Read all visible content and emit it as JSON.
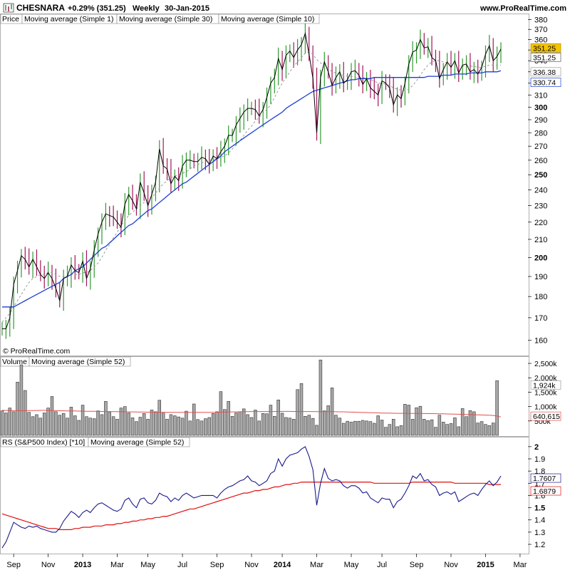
{
  "header": {
    "symbol": "CHESNARA",
    "change": "+0.29% (351.25)",
    "period": "Weekly",
    "date": "30-Jan-2015",
    "site": "www.ProRealTime.com"
  },
  "copyright": "© ProRealTime.com",
  "colors": {
    "up_bar": "#2e9a2e",
    "down_bar": "#a4145a",
    "price_line": "#000000",
    "sma1": "#0b1a8c",
    "sma30": "#1b3fd6",
    "sma10": "#9a9a9a",
    "volume_bar": "#a8a8a8",
    "volume_ma": "#e05050",
    "rs_line": "#1a1a8c",
    "rs_ma": "#e01010",
    "badge_yellow": "#f5c400"
  },
  "chart_data": [
    {
      "type": "candlestick-line",
      "panel": "price",
      "legend": [
        "Price",
        "Moving average (Simple 1)",
        "Moving average (Simple 30)",
        "Moving average (Simple 10)"
      ],
      "y_ticks": [
        160,
        170,
        180,
        190,
        200,
        210,
        220,
        230,
        240,
        250,
        260,
        270,
        280,
        290,
        300,
        310,
        320,
        330,
        340,
        350,
        360,
        370,
        380
      ],
      "y_bold_ticks": [
        200,
        250,
        300,
        350
      ],
      "ylim": [
        158,
        381
      ],
      "scale": "log",
      "x_labels": [
        {
          "label": "Sep",
          "week": 3,
          "bold": false
        },
        {
          "label": "Nov",
          "week": 12,
          "bold": false
        },
        {
          "label": "2013",
          "week": 21,
          "bold": true
        },
        {
          "label": "Mar",
          "week": 30,
          "bold": false
        },
        {
          "label": "May",
          "week": 38,
          "bold": false
        },
        {
          "label": "Jul",
          "week": 47,
          "bold": false
        },
        {
          "label": "Sep",
          "week": 56,
          "bold": false
        },
        {
          "label": "Nov",
          "week": 65,
          "bold": false
        },
        {
          "label": "2014",
          "week": 73,
          "bold": true
        },
        {
          "label": "Mar",
          "week": 82,
          "bold": false
        },
        {
          "label": "May",
          "week": 91,
          "bold": false
        },
        {
          "label": "Jul",
          "week": 99,
          "bold": false
        },
        {
          "label": "Sep",
          "week": 108,
          "bold": false
        },
        {
          "label": "Nov",
          "week": 117,
          "bold": false
        },
        {
          "label": "2015",
          "week": 126,
          "bold": true
        },
        {
          "label": "Mar",
          "week": 135,
          "bold": false
        }
      ],
      "weeks": 131,
      "close": [
        165,
        165,
        170,
        186,
        193,
        201,
        199,
        195,
        199,
        195,
        191,
        189,
        192,
        189,
        184,
        178,
        189,
        190,
        196,
        193,
        192,
        198,
        189,
        194,
        204,
        213,
        220,
        225,
        224,
        223,
        220,
        217,
        231,
        237,
        233,
        228,
        245,
        238,
        230,
        237,
        245,
        268,
        256,
        254,
        244,
        249,
        246,
        256,
        260,
        260,
        259,
        259,
        262,
        261,
        257,
        263,
        261,
        266,
        270,
        278,
        278,
        286,
        291,
        296,
        299,
        299,
        298,
        293,
        298,
        308,
        320,
        325,
        342,
        332,
        345,
        349,
        343,
        350,
        355,
        366,
        346,
        324,
        280,
        325,
        339,
        330,
        318,
        325,
        330,
        320,
        323,
        330,
        331,
        327,
        319,
        324,
        316,
        313,
        310,
        322,
        320,
        316,
        302,
        310,
        307,
        320,
        337,
        348,
        350,
        360,
        352,
        353,
        343,
        340,
        324,
        332,
        339,
        334,
        340,
        329,
        336,
        337,
        330,
        332,
        328,
        334,
        346,
        354,
        340,
        344,
        351
      ],
      "bars": {
        "count": 131,
        "note": "weekly high/low bars coloured by direction"
      },
      "sma10_last": 336.38,
      "sma30_last": 330.74,
      "badges": [
        351.25,
        351.25,
        336.38,
        330.74
      ],
      "sma30": [
        175,
        175,
        175,
        175,
        176,
        177,
        178,
        179,
        180,
        181,
        182,
        183,
        184,
        185,
        186,
        187,
        189,
        190,
        191,
        193,
        194,
        195,
        197,
        199,
        201,
        203,
        205,
        206,
        208,
        210,
        212,
        214,
        216,
        218,
        219,
        221,
        223,
        225,
        227,
        228,
        230,
        232,
        234,
        236,
        238,
        240,
        242,
        244,
        245,
        247,
        249,
        251,
        253,
        255,
        257,
        259,
        261,
        263,
        266,
        268,
        270,
        272,
        274,
        276,
        278,
        280,
        282,
        284,
        286,
        288,
        290,
        292,
        294,
        296,
        299,
        301,
        303,
        305,
        307,
        309,
        311,
        313,
        314,
        315,
        316,
        317,
        318,
        319,
        320,
        321,
        322,
        323,
        323,
        324,
        324,
        324,
        324,
        325,
        325,
        325,
        325,
        325,
        325,
        325,
        325,
        325,
        325,
        325,
        325,
        325,
        325,
        326,
        326,
        326,
        326,
        327,
        327,
        327,
        328,
        328,
        328,
        328,
        329,
        329,
        329,
        329,
        330,
        330,
        330,
        330,
        331
      ],
      "sma10": [
        168,
        170,
        172,
        175,
        178,
        181,
        184,
        187,
        189,
        190,
        191,
        191,
        192,
        192,
        191,
        190,
        190,
        190,
        191,
        191,
        191,
        192,
        192,
        193,
        195,
        197,
        200,
        204,
        207,
        211,
        214,
        218,
        221,
        224,
        226,
        228,
        230,
        232,
        234,
        235,
        238,
        241,
        244,
        246,
        248,
        249,
        250,
        251,
        252,
        254,
        256,
        257,
        258,
        259,
        260,
        260,
        261,
        262,
        263,
        265,
        268,
        271,
        274,
        278,
        282,
        285,
        289,
        292,
        295,
        298,
        302,
        308,
        314,
        320,
        325,
        330,
        335,
        339,
        343,
        347,
        348,
        346,
        341,
        338,
        336,
        333,
        330,
        329,
        328,
        327,
        326,
        326,
        325,
        325,
        325,
        324,
        323,
        322,
        320,
        320,
        319,
        318,
        316,
        315,
        314,
        314,
        315,
        318,
        322,
        327,
        332,
        336,
        339,
        340,
        340,
        339,
        338,
        337,
        337,
        336,
        335,
        335,
        335,
        335,
        334,
        334,
        335,
        336,
        336,
        336,
        336
      ]
    },
    {
      "type": "bar",
      "panel": "volume",
      "legend": [
        "Volume",
        "Moving average (Simple 52)"
      ],
      "y_ticks": [
        "2,500k",
        "2,000k",
        "1,500k",
        "1,000k",
        "500k"
      ],
      "y_tick_values": [
        2500,
        2000,
        1500,
        1000,
        500
      ],
      "ylim": [
        0,
        2600
      ],
      "unit": "k",
      "values": [
        850,
        780,
        950,
        820,
        1850,
        2450,
        1560,
        800,
        650,
        720,
        600,
        780,
        950,
        1350,
        820,
        700,
        760,
        600,
        980,
        680,
        520,
        1050,
        650,
        600,
        580,
        850,
        720,
        1180,
        800,
        650,
        560,
        950,
        1000,
        780,
        610,
        480,
        630,
        760,
        560,
        880,
        820,
        1220,
        800,
        560,
        720,
        680,
        640,
        600,
        840,
        500,
        1090,
        550,
        500,
        580,
        620,
        760,
        820,
        1520,
        900,
        1180,
        660,
        780,
        820,
        920,
        720,
        620,
        880,
        500,
        760,
        750,
        1050,
        660,
        1230,
        770,
        620,
        600,
        560,
        1590,
        1800,
        660,
        700,
        590,
        350,
        2620,
        850,
        1030,
        1650,
        700,
        600,
        420,
        490,
        460,
        490,
        490,
        520,
        500,
        480,
        420,
        680,
        530,
        280,
        380,
        560,
        300,
        340,
        1080,
        1050,
        560,
        960,
        1010,
        560,
        510,
        540,
        280,
        700,
        460,
        380,
        410,
        610,
        300,
        930,
        650,
        860,
        820,
        430,
        480,
        380,
        340,
        430,
        1900
      ],
      "ma": [
        870,
        865,
        860,
        858,
        856,
        855,
        860,
        860,
        862,
        864,
        866,
        866,
        866,
        862,
        858,
        855,
        852,
        850,
        848,
        846,
        843,
        840,
        838,
        836,
        834,
        832,
        830,
        828,
        826,
        824,
        822,
        820,
        818,
        816,
        814,
        812,
        810,
        808,
        806,
        804,
        802,
        800,
        800,
        800,
        800,
        800,
        800,
        800,
        800,
        800,
        800,
        800,
        800,
        800,
        800,
        800,
        802,
        806,
        810,
        812,
        814,
        816,
        820,
        822,
        824,
        826,
        826,
        828,
        828,
        826,
        826,
        828,
        830,
        832,
        832,
        832,
        830,
        830,
        828,
        826,
        826,
        826,
        824,
        824,
        824,
        824,
        822,
        820,
        818,
        816,
        812,
        808,
        804,
        800,
        796,
        792,
        788,
        784,
        780,
        776,
        772,
        770,
        768,
        766,
        764,
        764,
        762,
        762,
        760,
        760,
        758,
        756,
        754,
        752,
        750,
        748,
        744,
        740,
        736,
        732,
        728,
        724,
        720,
        716,
        712,
        708,
        704,
        700,
        690,
        670,
        640
      ],
      "last_value": "1,924k",
      "last_ma": "640,615"
    },
    {
      "type": "line",
      "panel": "rs",
      "legend": [
        "RS (S&P500 Index) [*10]",
        "Moving average (Simple 52)"
      ],
      "y_ticks": [
        1.2,
        1.3,
        1.4,
        1.5,
        1.6,
        1.7,
        1.8,
        1.9,
        2
      ],
      "y_bold_ticks": [
        1.5,
        2
      ],
      "ylim": [
        1.13,
        2.04
      ],
      "rs": [
        1.17,
        1.22,
        1.3,
        1.38,
        1.36,
        1.34,
        1.33,
        1.35,
        1.34,
        1.35,
        1.33,
        1.32,
        1.31,
        1.3,
        1.3,
        1.33,
        1.39,
        1.43,
        1.47,
        1.45,
        1.42,
        1.46,
        1.48,
        1.46,
        1.5,
        1.53,
        1.54,
        1.52,
        1.5,
        1.48,
        1.47,
        1.49,
        1.56,
        1.58,
        1.53,
        1.5,
        1.57,
        1.58,
        1.54,
        1.53,
        1.56,
        1.62,
        1.6,
        1.59,
        1.55,
        1.58,
        1.56,
        1.6,
        1.62,
        1.6,
        1.58,
        1.59,
        1.6,
        1.6,
        1.6,
        1.6,
        1.58,
        1.62,
        1.65,
        1.67,
        1.68,
        1.7,
        1.72,
        1.73,
        1.76,
        1.72,
        1.71,
        1.68,
        1.7,
        1.72,
        1.78,
        1.8,
        1.9,
        1.84,
        1.9,
        1.93,
        1.94,
        1.95,
        1.98,
        2.0,
        1.92,
        1.81,
        1.52,
        1.7,
        1.82,
        1.74,
        1.72,
        1.73,
        1.72,
        1.68,
        1.66,
        1.68,
        1.68,
        1.66,
        1.62,
        1.63,
        1.58,
        1.56,
        1.54,
        1.58,
        1.57,
        1.57,
        1.5,
        1.55,
        1.57,
        1.62,
        1.68,
        1.76,
        1.74,
        1.78,
        1.72,
        1.73,
        1.69,
        1.67,
        1.6,
        1.62,
        1.63,
        1.61,
        1.63,
        1.55,
        1.57,
        1.59,
        1.61,
        1.62,
        1.6,
        1.65,
        1.69,
        1.72,
        1.68,
        1.71,
        1.76
      ],
      "ma": [
        1.45,
        1.44,
        1.43,
        1.42,
        1.41,
        1.4,
        1.39,
        1.38,
        1.37,
        1.36,
        1.35,
        1.34,
        1.33,
        1.33,
        1.33,
        1.32,
        1.32,
        1.32,
        1.32,
        1.33,
        1.33,
        1.34,
        1.34,
        1.34,
        1.35,
        1.35,
        1.35,
        1.36,
        1.36,
        1.36,
        1.37,
        1.37,
        1.38,
        1.38,
        1.39,
        1.39,
        1.4,
        1.4,
        1.41,
        1.41,
        1.42,
        1.42,
        1.43,
        1.43,
        1.44,
        1.45,
        1.46,
        1.47,
        1.48,
        1.49,
        1.49,
        1.5,
        1.51,
        1.52,
        1.53,
        1.54,
        1.55,
        1.56,
        1.57,
        1.58,
        1.59,
        1.6,
        1.61,
        1.62,
        1.62,
        1.63,
        1.64,
        1.64,
        1.65,
        1.65,
        1.66,
        1.67,
        1.67,
        1.68,
        1.69,
        1.69,
        1.7,
        1.7,
        1.71,
        1.71,
        1.71,
        1.71,
        1.71,
        1.71,
        1.71,
        1.71,
        1.71,
        1.71,
        1.71,
        1.71,
        1.71,
        1.71,
        1.71,
        1.71,
        1.71,
        1.71,
        1.71,
        1.7,
        1.7,
        1.7,
        1.7,
        1.7,
        1.7,
        1.7,
        1.7,
        1.7,
        1.7,
        1.71,
        1.71,
        1.71,
        1.71,
        1.71,
        1.71,
        1.71,
        1.71,
        1.71,
        1.71,
        1.71,
        1.7,
        1.7,
        1.7,
        1.7,
        1.7,
        1.7,
        1.7,
        1.7,
        1.7,
        1.69,
        1.69,
        1.69,
        1.69
      ],
      "last_value": "1.7607",
      "last_ma": "1.6879"
    }
  ]
}
